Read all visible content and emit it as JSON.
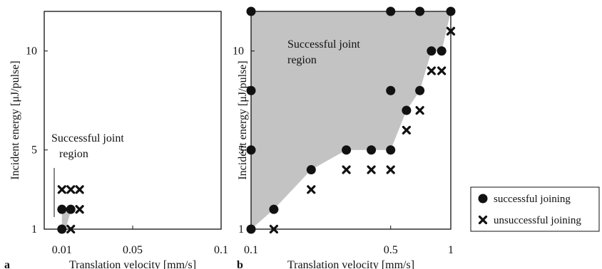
{
  "colors": {
    "region": "#c3c3c3",
    "marker": "#111111",
    "frame": "#111111"
  },
  "chart_data": [
    {
      "panel": "a",
      "type": "scatter",
      "xlabel": "Translation velocity [mm/s]",
      "ylabel": "Incident energy [μJ/pulse]",
      "xlim": [
        0.0,
        0.1
      ],
      "ylim": [
        1,
        12
      ],
      "xticks": [
        {
          "value": 0.01,
          "label": "0.01"
        },
        {
          "value": 0.05,
          "label": "0.05"
        },
        {
          "value": 0.1,
          "label": "0.1"
        }
      ],
      "yticks": [
        {
          "value": 1,
          "label": "1"
        },
        {
          "value": 5,
          "label": "5"
        },
        {
          "value": 10,
          "label": "10"
        }
      ],
      "region_label": [
        "Successful joint",
        "region"
      ],
      "region": [
        [
          0.01,
          1
        ],
        [
          0.01,
          2
        ],
        [
          0.015,
          2
        ],
        [
          0.015,
          1.9
        ],
        [
          0.012,
          1
        ]
      ],
      "series": [
        {
          "name": "successful joining",
          "marker": "circle",
          "points": [
            [
              0.01,
              1
            ],
            [
              0.01,
              2
            ],
            [
              0.015,
              2
            ]
          ]
        },
        {
          "name": "unsuccessful joining",
          "marker": "x",
          "points": [
            [
              0.01,
              3
            ],
            [
              0.015,
              3
            ],
            [
              0.02,
              3
            ],
            [
              0.02,
              2
            ],
            [
              0.015,
              1
            ]
          ]
        }
      ]
    },
    {
      "panel": "b",
      "type": "scatter",
      "xlabel": "Translation velocity [mm/s]",
      "ylabel": "Incident energy [μJ/pulse]",
      "xscale": "log",
      "xlim": [
        0.1,
        1.0
      ],
      "ylim": [
        1,
        12
      ],
      "xticks": [
        {
          "value": 0.1,
          "label": "0.1"
        },
        {
          "value": 0.5,
          "label": "0.5"
        },
        {
          "value": 1.0,
          "label": "1"
        }
      ],
      "yticks": [
        {
          "value": 1,
          "label": "1"
        },
        {
          "value": 5,
          "label": "5"
        },
        {
          "value": 10,
          "label": "10"
        }
      ],
      "region_label": [
        "Successful joint",
        "region"
      ],
      "region": [
        [
          0.1,
          1
        ],
        [
          0.13,
          2
        ],
        [
          0.2,
          4
        ],
        [
          0.3,
          5
        ],
        [
          0.5,
          5
        ],
        [
          0.6,
          7
        ],
        [
          0.7,
          8
        ],
        [
          0.8,
          10
        ],
        [
          0.9,
          10
        ],
        [
          1.0,
          12
        ],
        [
          0.1,
          12
        ]
      ],
      "series": [
        {
          "name": "successful joining",
          "marker": "circle",
          "points": [
            [
              0.1,
              1
            ],
            [
              0.13,
              2
            ],
            [
              0.2,
              4
            ],
            [
              0.3,
              5
            ],
            [
              0.4,
              5
            ],
            [
              0.5,
              5
            ],
            [
              0.6,
              7
            ],
            [
              0.7,
              8
            ],
            [
              0.8,
              10
            ],
            [
              0.9,
              10
            ],
            [
              0.1,
              5
            ],
            [
              0.1,
              8
            ],
            [
              0.5,
              8
            ],
            [
              0.1,
              12
            ],
            [
              0.5,
              12
            ],
            [
              0.7,
              12
            ],
            [
              1.0,
              12
            ]
          ]
        },
        {
          "name": "unsuccessful joining",
          "marker": "x",
          "points": [
            [
              0.13,
              1
            ],
            [
              0.2,
              3
            ],
            [
              0.3,
              4
            ],
            [
              0.4,
              4
            ],
            [
              0.5,
              4
            ],
            [
              0.6,
              6
            ],
            [
              0.7,
              7
            ],
            [
              0.8,
              9
            ],
            [
              0.9,
              9
            ],
            [
              1.0,
              11
            ]
          ]
        }
      ]
    }
  ],
  "legend": [
    {
      "marker": "circle",
      "label": "successful joining"
    },
    {
      "marker": "x",
      "label": "unsuccessful joining"
    }
  ]
}
